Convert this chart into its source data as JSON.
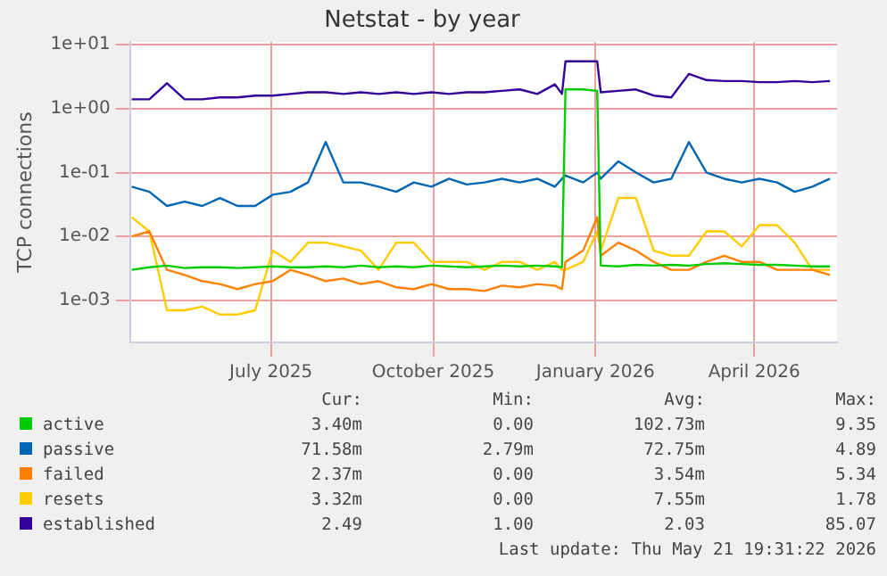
{
  "chart_data": {
    "type": "line",
    "title": "Netstat - by year",
    "ylabel": "TCP connections",
    "x": [
      "2025-04-13",
      "2025-04-23",
      "2025-05-03",
      "2025-05-13",
      "2025-05-23",
      "2025-06-02",
      "2025-06-12",
      "2025-06-22",
      "2025-07-02",
      "2025-07-12",
      "2025-07-22",
      "2025-08-01",
      "2025-08-11",
      "2025-08-21",
      "2025-08-31",
      "2025-09-10",
      "2025-09-20",
      "2025-09-30",
      "2025-10-10",
      "2025-10-20",
      "2025-10-30",
      "2025-11-09",
      "2025-11-19",
      "2025-11-29",
      "2025-12-09",
      "2025-12-13",
      "2025-12-15",
      "2025-12-25",
      "2026-01-02",
      "2026-01-04",
      "2026-01-14",
      "2026-01-24",
      "2026-02-03",
      "2026-02-13",
      "2026-02-23",
      "2026-03-05",
      "2026-03-15",
      "2026-03-25",
      "2026-04-04",
      "2026-04-14",
      "2026-04-24",
      "2026-05-04",
      "2026-05-14"
    ],
    "series": [
      {
        "name": "active",
        "color": "#00cc00",
        "values": [
          0.003,
          0.0033,
          0.0035,
          0.0032,
          0.0033,
          0.0033,
          0.0032,
          0.0033,
          0.0034,
          0.0033,
          0.0033,
          0.0034,
          0.0033,
          0.0035,
          0.0033,
          0.0034,
          0.0033,
          0.0035,
          0.0034,
          0.0033,
          0.0034,
          0.0035,
          0.0034,
          0.0035,
          0.0034,
          0.0033,
          2.0,
          2.0,
          1.9,
          0.0035,
          0.0034,
          0.0036,
          0.0035,
          0.0036,
          0.0035,
          0.0037,
          0.0038,
          0.0037,
          0.0036,
          0.0036,
          0.0035,
          0.0034,
          0.0034
        ]
      },
      {
        "name": "passive",
        "color": "#0066b3",
        "values": [
          0.06,
          0.05,
          0.03,
          0.035,
          0.03,
          0.04,
          0.03,
          0.03,
          0.045,
          0.05,
          0.07,
          0.3,
          0.07,
          0.07,
          0.06,
          0.05,
          0.07,
          0.06,
          0.08,
          0.065,
          0.07,
          0.08,
          0.07,
          0.08,
          0.06,
          0.08,
          0.09,
          0.07,
          0.1,
          0.08,
          0.15,
          0.1,
          0.07,
          0.08,
          0.3,
          0.1,
          0.08,
          0.07,
          0.08,
          0.07,
          0.05,
          0.06,
          0.08
        ]
      },
      {
        "name": "failed",
        "color": "#ff8000",
        "values": [
          0.01,
          0.012,
          0.003,
          0.0025,
          0.002,
          0.0018,
          0.0015,
          0.0018,
          0.002,
          0.003,
          0.0025,
          0.002,
          0.0022,
          0.0018,
          0.002,
          0.0016,
          0.0015,
          0.0018,
          0.0015,
          0.0015,
          0.0014,
          0.0017,
          0.0016,
          0.0018,
          0.0017,
          0.0015,
          0.004,
          0.006,
          0.02,
          0.005,
          0.008,
          0.006,
          0.004,
          0.003,
          0.003,
          0.004,
          0.005,
          0.004,
          0.004,
          0.003,
          0.003,
          0.003,
          0.0025
        ]
      },
      {
        "name": "resets",
        "color": "#ffcc00",
        "values": [
          0.02,
          0.012,
          0.0007,
          0.0007,
          0.0008,
          0.0006,
          0.0006,
          0.0007,
          0.006,
          0.004,
          0.008,
          0.008,
          0.007,
          0.006,
          0.003,
          0.008,
          0.008,
          0.004,
          0.004,
          0.004,
          0.003,
          0.004,
          0.004,
          0.003,
          0.004,
          0.003,
          0.003,
          0.004,
          0.012,
          0.006,
          0.04,
          0.04,
          0.006,
          0.005,
          0.005,
          0.012,
          0.012,
          0.007,
          0.015,
          0.015,
          0.008,
          0.003,
          0.003
        ]
      },
      {
        "name": "established",
        "color": "#330099",
        "values": [
          1.4,
          1.4,
          2.5,
          1.4,
          1.4,
          1.5,
          1.5,
          1.6,
          1.6,
          1.7,
          1.8,
          1.8,
          1.7,
          1.8,
          1.7,
          1.8,
          1.7,
          1.8,
          1.7,
          1.8,
          1.8,
          1.9,
          2.0,
          1.7,
          2.4,
          1.7,
          5.5,
          5.5,
          5.5,
          1.8,
          1.9,
          2.0,
          1.6,
          1.5,
          3.5,
          2.8,
          2.7,
          2.7,
          2.6,
          2.6,
          2.7,
          2.6,
          2.7
        ]
      }
    ],
    "xlim": [
      "2025-04-12",
      "2026-05-18"
    ],
    "xticks": [
      {
        "value": "2025-07-01",
        "label": "July 2025"
      },
      {
        "value": "2025-10-01",
        "label": "October 2025"
      },
      {
        "value": "2026-01-01",
        "label": "January 2026"
      },
      {
        "value": "2026-04-01",
        "label": "April 2026"
      }
    ],
    "ylim": [
      0.00022,
      11
    ],
    "log": "y",
    "yticks": [
      {
        "value": 0.001,
        "label": "1e-03"
      },
      {
        "value": 0.01,
        "label": "1e-02"
      },
      {
        "value": 0.1,
        "label": "1e-01"
      },
      {
        "value": 1,
        "label": "1e+00"
      },
      {
        "value": 10,
        "label": "1e+01"
      }
    ],
    "grid": true,
    "legend": "bottom",
    "marker": "none",
    "line_style": "solid",
    "annotations": [
      "Cur:",
      "Min:",
      "Avg:",
      "Max:",
      "3.40m",
      "0.00",
      "102.73m",
      "9.35",
      "71.58m",
      "2.79m",
      "72.75m",
      "4.89",
      "2.37m",
      "0.00",
      "3.54m",
      "5.34",
      "3.32m",
      "0.00",
      "7.55m",
      "1.78",
      "2.49",
      "1.00",
      "2.03",
      "85.07",
      "Last update: Thu May 21 19:31:22 2026"
    ]
  }
}
